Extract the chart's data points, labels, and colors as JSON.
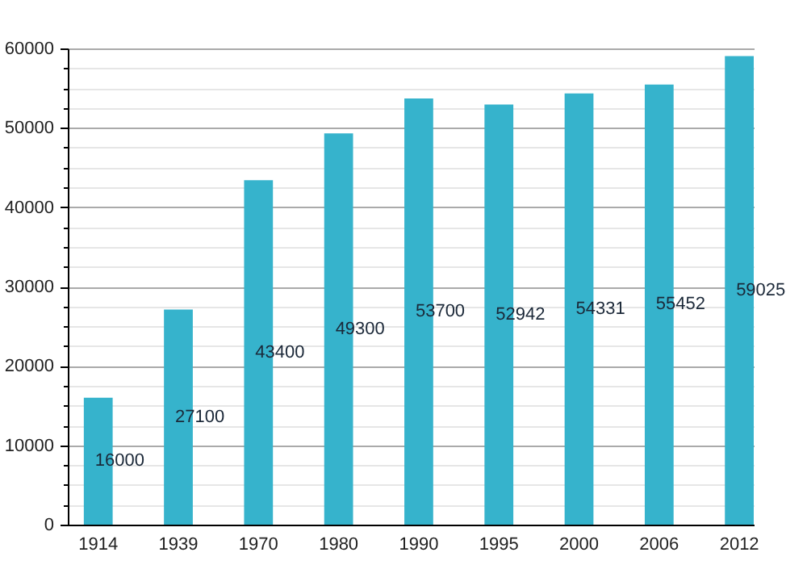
{
  "chart_data": {
    "type": "bar",
    "categories": [
      "1914",
      "1939",
      "1970",
      "1980",
      "1990",
      "1995",
      "2000",
      "2006",
      "2012"
    ],
    "values": [
      16000,
      27100,
      43400,
      49300,
      53700,
      52942,
      54331,
      55452,
      59025
    ],
    "color": "#36b3cc",
    "data_labels": true,
    "ylim": [
      0,
      60000
    ],
    "yticks": [
      0,
      {
        "value": 2500,
        "label": null
      },
      {
        "value": 5000,
        "label": null
      },
      {
        "value": 7500,
        "label": null
      },
      10000,
      {
        "value": 12500,
        "label": null
      },
      {
        "value": 15000,
        "label": null
      },
      {
        "value": 17500,
        "label": null
      },
      20000,
      {
        "value": 22500,
        "label": null
      },
      {
        "value": 25000,
        "label": null
      },
      {
        "value": 27500,
        "label": null
      },
      30000,
      {
        "value": 32500,
        "label": null
      },
      {
        "value": 35000,
        "label": null
      },
      {
        "value": 37500,
        "label": null
      },
      40000,
      {
        "value": 42500,
        "label": null
      },
      {
        "value": 45000,
        "label": null
      },
      {
        "value": 47500,
        "label": null
      },
      50000,
      {
        "value": 52500,
        "label": null
      },
      {
        "value": 55000,
        "label": null
      },
      {
        "value": 57500,
        "label": null
      },
      60000
    ],
    "grid": true
  }
}
